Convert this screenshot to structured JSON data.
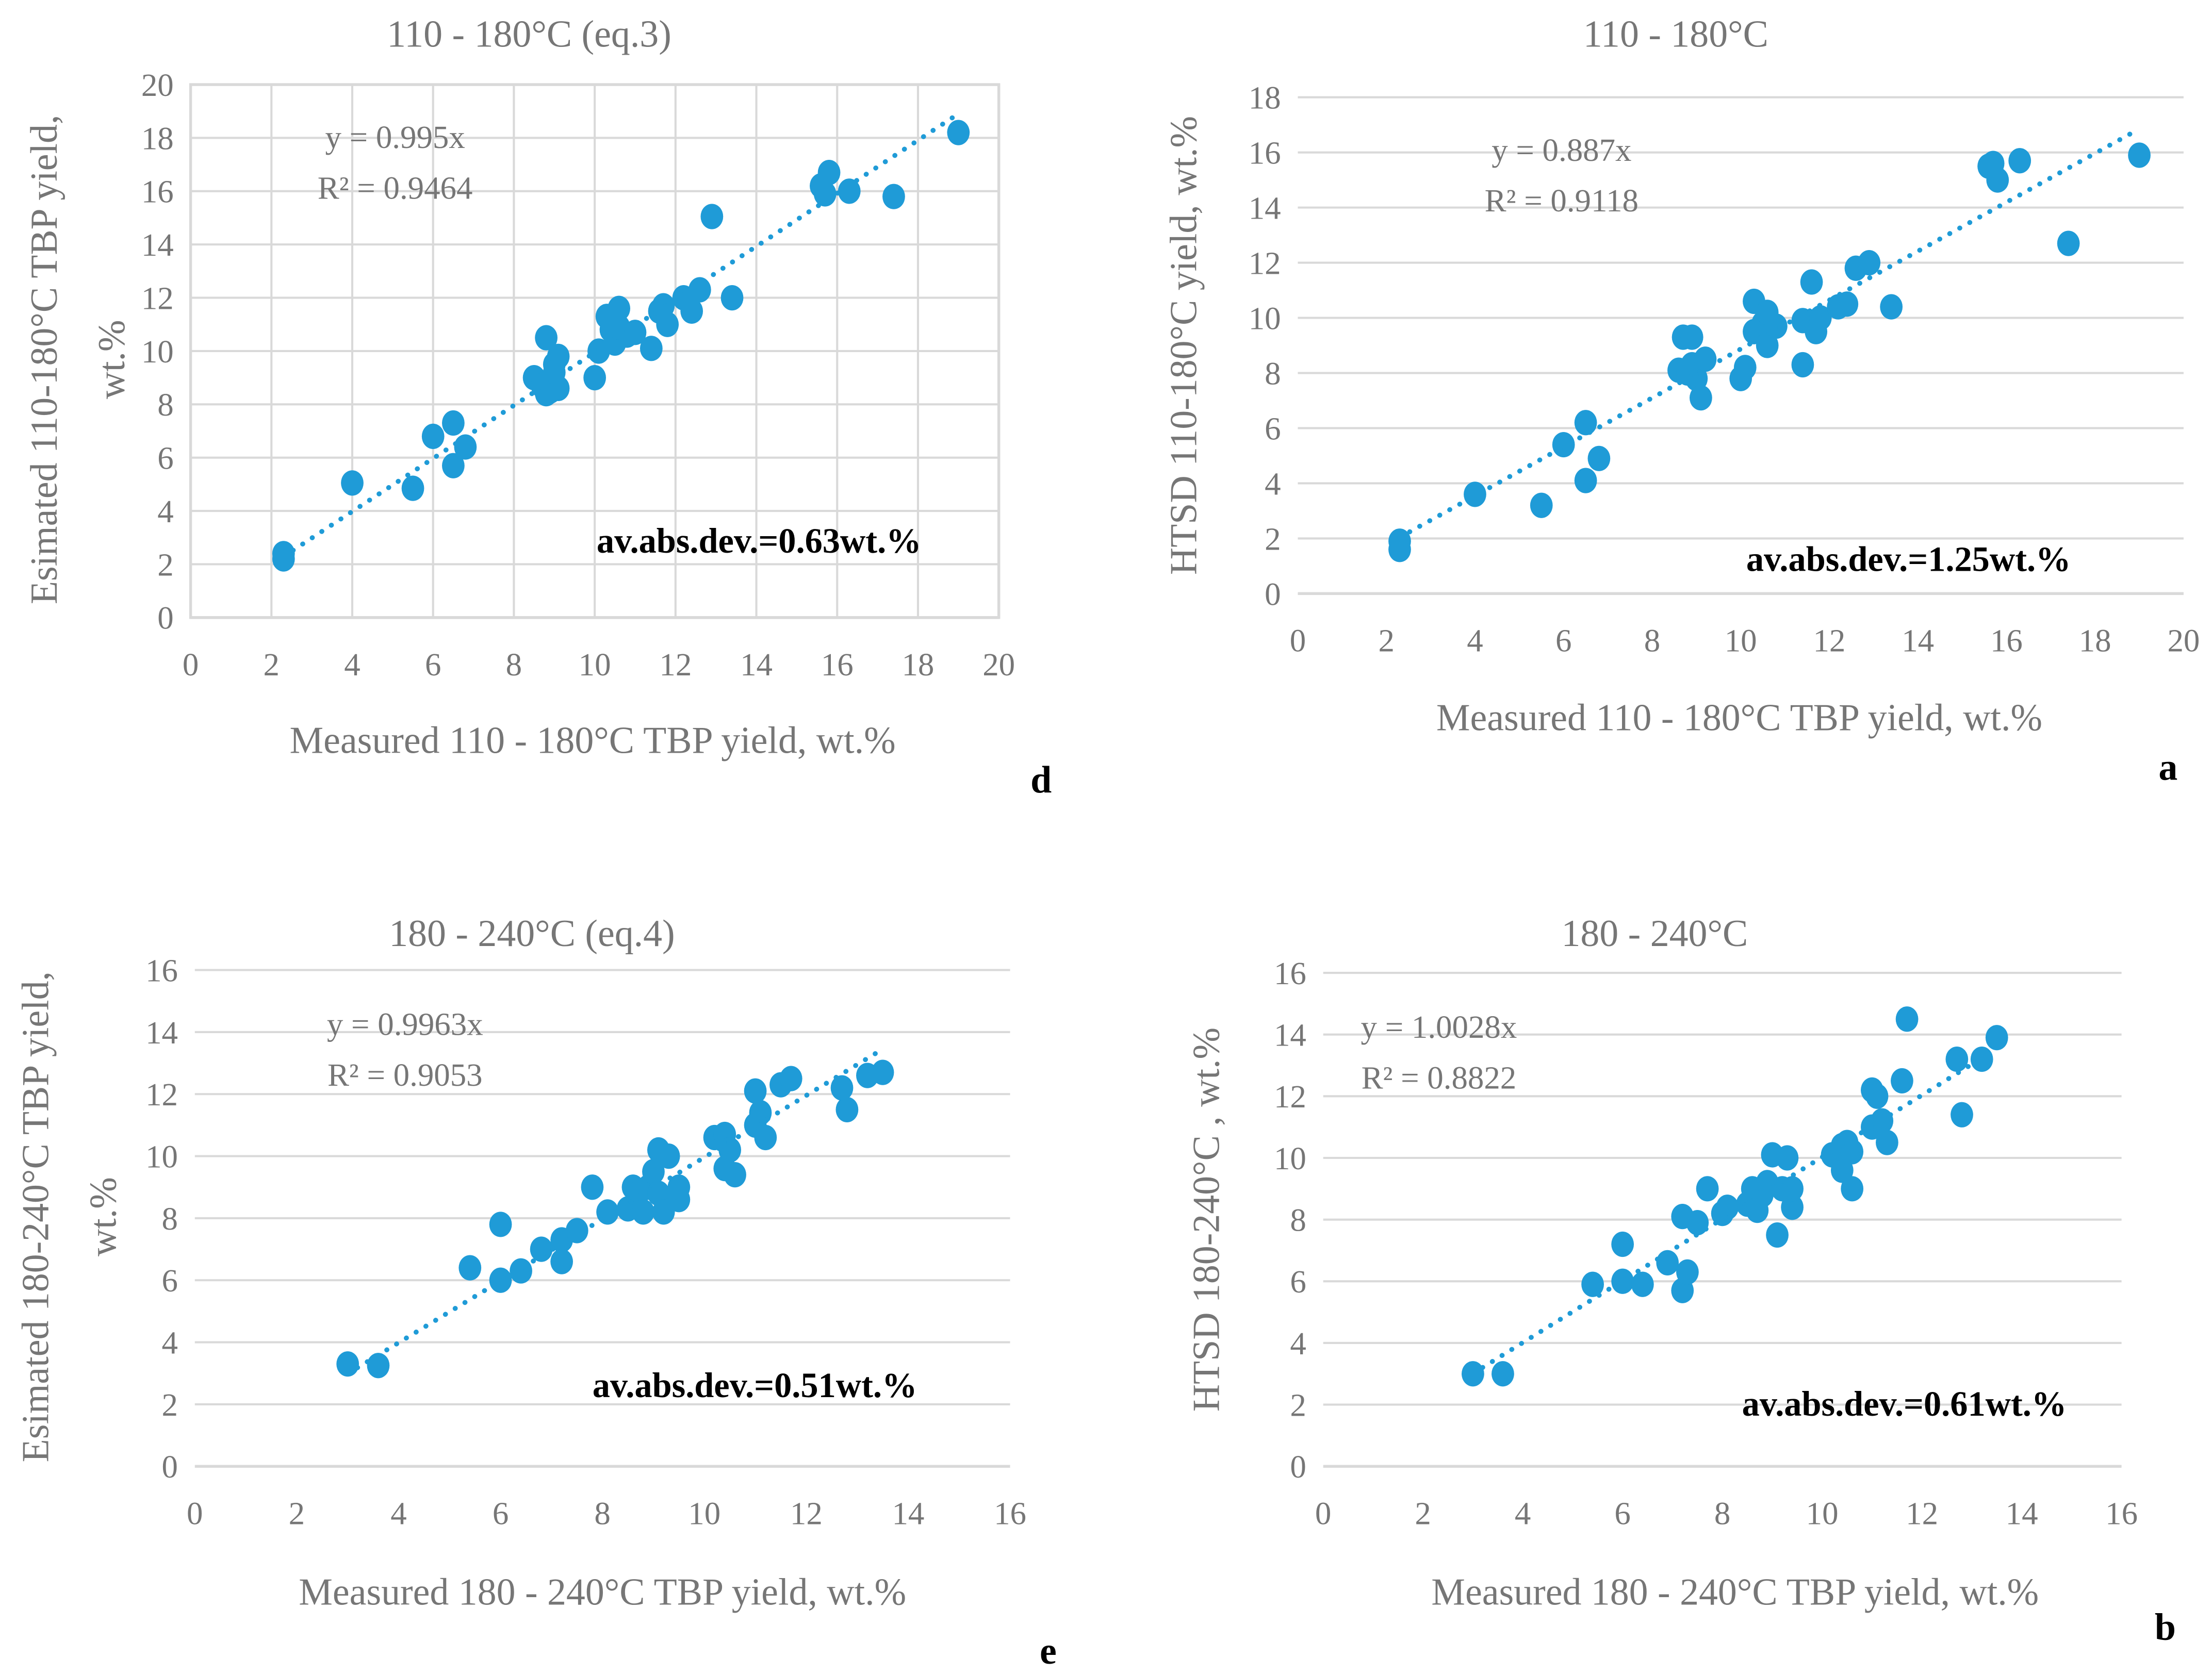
{
  "colors": {
    "point": "#1f9bd7",
    "grid": "#d9d9d9",
    "text": "#767676"
  },
  "chart_data": [
    {
      "type": "scatter",
      "panel_letter": "d",
      "title": "110 - 180°C (eq.3)",
      "xlabel": "Measured 110 - 180°C TBP yield, wt.%",
      "ylabel": [
        "Esimated 110-180°C TBP yield,",
        "wt.%"
      ],
      "xlim": [
        0,
        20
      ],
      "ylim": [
        0,
        20
      ],
      "xstep": 2,
      "ystep": 2,
      "grid": true,
      "trendline": {
        "slope": 0.995,
        "equation": "y = 0.995x",
        "r2": "R² = 0.9464",
        "x_range": [
          2.3,
          19
        ]
      },
      "annotation": "av.abs.dev.=0.63wt.%",
      "points": [
        [
          2.3,
          2.2
        ],
        [
          2.3,
          2.4
        ],
        [
          4,
          5.05
        ],
        [
          5.5,
          4.85
        ],
        [
          6,
          6.8
        ],
        [
          6.5,
          7.3
        ],
        [
          6.5,
          5.7
        ],
        [
          6.8,
          6.4
        ],
        [
          8.5,
          9
        ],
        [
          8.7,
          8.7
        ],
        [
          8.8,
          10.5
        ],
        [
          8.9,
          8.5
        ],
        [
          9,
          9.5
        ],
        [
          9.1,
          9.8
        ],
        [
          9.1,
          8.6
        ],
        [
          8.8,
          8.4
        ],
        [
          9,
          9.2
        ],
        [
          10,
          9
        ],
        [
          10.1,
          10
        ],
        [
          10.3,
          11.3
        ],
        [
          10.4,
          10.8
        ],
        [
          10.6,
          11.6
        ],
        [
          10.5,
          10.3
        ],
        [
          10.6,
          10.9
        ],
        [
          10.8,
          10.6
        ],
        [
          11,
          10.7
        ],
        [
          11.4,
          10.1
        ],
        [
          11.6,
          11.5
        ],
        [
          11.7,
          11.7
        ],
        [
          11.8,
          11
        ],
        [
          12.2,
          12
        ],
        [
          12.4,
          11.5
        ],
        [
          12.6,
          12.3
        ],
        [
          12.9,
          15.05
        ],
        [
          13.4,
          12
        ],
        [
          15.6,
          16.2
        ],
        [
          15.7,
          15.9
        ],
        [
          15.8,
          16.7
        ],
        [
          16.3,
          16
        ],
        [
          17.4,
          15.8
        ],
        [
          19,
          18.2
        ]
      ]
    },
    {
      "type": "scatter",
      "panel_letter": "a",
      "title": "110 - 180°C",
      "xlabel": "Measured 110 - 180°C TBP yield, wt.%",
      "ylabel": [
        "HTSD 110-180°C  yield, wt.%"
      ],
      "xlim": [
        0,
        20
      ],
      "ylim": [
        0,
        18
      ],
      "xstep": 2,
      "ystep": 2,
      "grid": false,
      "trendline": {
        "slope": 0.887,
        "equation": "y = 0.887x",
        "r2": "R² = 0.9118",
        "x_range": [
          2.3,
          19
        ]
      },
      "annotation": "av.abs.dev.=1.25wt.%",
      "points": [
        [
          2.3,
          1.6
        ],
        [
          2.3,
          1.9
        ],
        [
          4,
          3.6
        ],
        [
          5.5,
          3.2
        ],
        [
          6,
          5.4
        ],
        [
          6.5,
          6.2
        ],
        [
          6.5,
          4.1
        ],
        [
          6.8,
          4.9
        ],
        [
          8.6,
          8.1
        ],
        [
          8.7,
          9.3
        ],
        [
          8.9,
          9.3
        ],
        [
          8.9,
          8.3
        ],
        [
          9,
          7.8
        ],
        [
          9.1,
          7.1
        ],
        [
          9.2,
          8.5
        ],
        [
          8.8,
          8.0
        ],
        [
          10,
          7.8
        ],
        [
          10.1,
          8.2
        ],
        [
          10.3,
          9.5
        ],
        [
          10.3,
          10.6
        ],
        [
          10.5,
          9.8
        ],
        [
          10.6,
          9.0
        ],
        [
          10.6,
          10.2
        ],
        [
          10.8,
          9.7
        ],
        [
          11.4,
          8.3
        ],
        [
          11.4,
          9.9
        ],
        [
          11.6,
          11.3
        ],
        [
          11.7,
          9.5
        ],
        [
          11.8,
          10.0
        ],
        [
          12.2,
          10.4
        ],
        [
          12.4,
          10.5
        ],
        [
          12.6,
          11.8
        ],
        [
          12.9,
          12.0
        ],
        [
          13.4,
          10.4
        ],
        [
          15.6,
          15.5
        ],
        [
          15.7,
          15.6
        ],
        [
          15.8,
          15.0
        ],
        [
          16.3,
          15.7
        ],
        [
          17.4,
          12.7
        ],
        [
          19,
          15.9
        ]
      ]
    },
    {
      "type": "scatter",
      "panel_letter": "e",
      "title": "180 - 240°C (eq.4)",
      "xlabel": "Measured 180 - 240°C TBP yield, wt.%",
      "ylabel": [
        "Esimated 180-240°C TBP yield,",
        "wt.%"
      ],
      "xlim": [
        0,
        16
      ],
      "ylim": [
        0,
        16
      ],
      "xstep": 2,
      "ystep": 2,
      "grid": false,
      "trendline": {
        "slope": 0.9963,
        "equation": "y = 0.9963x",
        "r2": "R² = 0.9053",
        "x_range": [
          3,
          13.5
        ]
      },
      "annotation": "av.abs.dev.=0.51wt.%",
      "points": [
        [
          3,
          3.3
        ],
        [
          3.6,
          3.25
        ],
        [
          5.4,
          6.4
        ],
        [
          6,
          6.0
        ],
        [
          6,
          7.8
        ],
        [
          6.4,
          6.3
        ],
        [
          6.8,
          7.0
        ],
        [
          7.2,
          7.3
        ],
        [
          7.2,
          6.6
        ],
        [
          7.5,
          7.6
        ],
        [
          7.8,
          9
        ],
        [
          8.1,
          8.2
        ],
        [
          8.5,
          8.3
        ],
        [
          8.6,
          9.0
        ],
        [
          8.7,
          8.8
        ],
        [
          8.8,
          8.2
        ],
        [
          8.9,
          9.0
        ],
        [
          9,
          9.5
        ],
        [
          9.1,
          10.2
        ],
        [
          9.1,
          8.8
        ],
        [
          9.2,
          8.2
        ],
        [
          9.3,
          10.0
        ],
        [
          9.5,
          8.6
        ],
        [
          9.5,
          9.0
        ],
        [
          10.2,
          10.6
        ],
        [
          10.4,
          10.7
        ],
        [
          10.4,
          9.6
        ],
        [
          10.5,
          10.2
        ],
        [
          10.6,
          9.4
        ],
        [
          11,
          12.1
        ],
        [
          11,
          11
        ],
        [
          11.1,
          11.4
        ],
        [
          11.2,
          10.6
        ],
        [
          11.5,
          12.3
        ],
        [
          11.7,
          12.5
        ],
        [
          12.7,
          12.2
        ],
        [
          12.8,
          11.5
        ],
        [
          13.2,
          12.6
        ],
        [
          13.5,
          12.7
        ]
      ]
    },
    {
      "type": "scatter",
      "panel_letter": "b",
      "title": "180 - 240°C",
      "xlabel": "Measured 180 - 240°C TBP yield, wt.%",
      "ylabel": [
        "HTSD 180-240°C , wt.%"
      ],
      "xlim": [
        0,
        16
      ],
      "ylim": [
        0,
        16
      ],
      "xstep": 2,
      "ystep": 2,
      "grid": false,
      "trendline": {
        "slope": 1.0028,
        "equation": "y = 1.0028x",
        "r2": "R² = 0.8822",
        "x_range": [
          3,
          13.5
        ]
      },
      "annotation": "av.abs.dev.=0.61wt.%",
      "points": [
        [
          3,
          3
        ],
        [
          3.6,
          3
        ],
        [
          5.4,
          5.9
        ],
        [
          6,
          6
        ],
        [
          6,
          7.2
        ],
        [
          6.4,
          5.9
        ],
        [
          6.9,
          6.6
        ],
        [
          7.2,
          8.1
        ],
        [
          7.2,
          5.7
        ],
        [
          7.3,
          6.3
        ],
        [
          7.5,
          7.9
        ],
        [
          7.7,
          9
        ],
        [
          8,
          8.2
        ],
        [
          8.1,
          8.4
        ],
        [
          8.5,
          8.5
        ],
        [
          8.6,
          9
        ],
        [
          8.7,
          8.3
        ],
        [
          8.8,
          8.8
        ],
        [
          8.9,
          9.2
        ],
        [
          9,
          10.1
        ],
        [
          9.1,
          7.5
        ],
        [
          9.2,
          9
        ],
        [
          9.3,
          10
        ],
        [
          9.4,
          8.4
        ],
        [
          9.4,
          9
        ],
        [
          10.2,
          10.1
        ],
        [
          10.4,
          10.4
        ],
        [
          10.4,
          9.6
        ],
        [
          10.5,
          10.5
        ],
        [
          10.6,
          10.2
        ],
        [
          10.6,
          9
        ],
        [
          11,
          12.2
        ],
        [
          11,
          11
        ],
        [
          11.1,
          12
        ],
        [
          11.2,
          11.2
        ],
        [
          11.3,
          10.5
        ],
        [
          11.6,
          12.5
        ],
        [
          11.7,
          14.5
        ],
        [
          12.7,
          13.2
        ],
        [
          12.8,
          11.4
        ],
        [
          13.2,
          13.2
        ],
        [
          13.5,
          13.9
        ]
      ]
    }
  ]
}
